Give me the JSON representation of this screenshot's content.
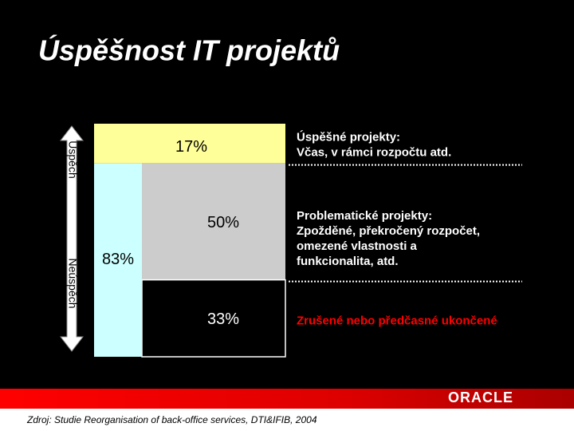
{
  "title": "Úspěšnost IT projektů",
  "source": "Zdroj: Studie Reorganisation of back-office services, DTI&IFIB, 2004",
  "logo": "ORACLE",
  "chart_data": {
    "type": "stacked-block",
    "values": [
      17,
      50,
      33
    ],
    "value_labels": [
      "17%",
      "50%",
      "33%"
    ],
    "colors": [
      "#ffff99",
      "#cccccc",
      "#000000"
    ],
    "label_colors": [
      "#000000",
      "#000000",
      "#ffffff"
    ],
    "combined": {
      "value": 83,
      "value_label": "83%",
      "color": "#ccffff"
    },
    "axis_labels": [
      "Úspěch",
      "Neúspěch"
    ],
    "descriptions": [
      [
        "Úspěšné projekty:",
        "Včas, v rámci rozpočtu atd."
      ],
      [
        "Problematické projekty:",
        "Zpožděné, překročený rozpočet,",
        "omezené vlastnosti a",
        "funkcionalita, atd."
      ],
      [
        "Zrušené nebo předčasné ukončené"
      ]
    ],
    "description_colors": [
      "#ffffff",
      "#ffffff",
      "#ff0000"
    ]
  }
}
